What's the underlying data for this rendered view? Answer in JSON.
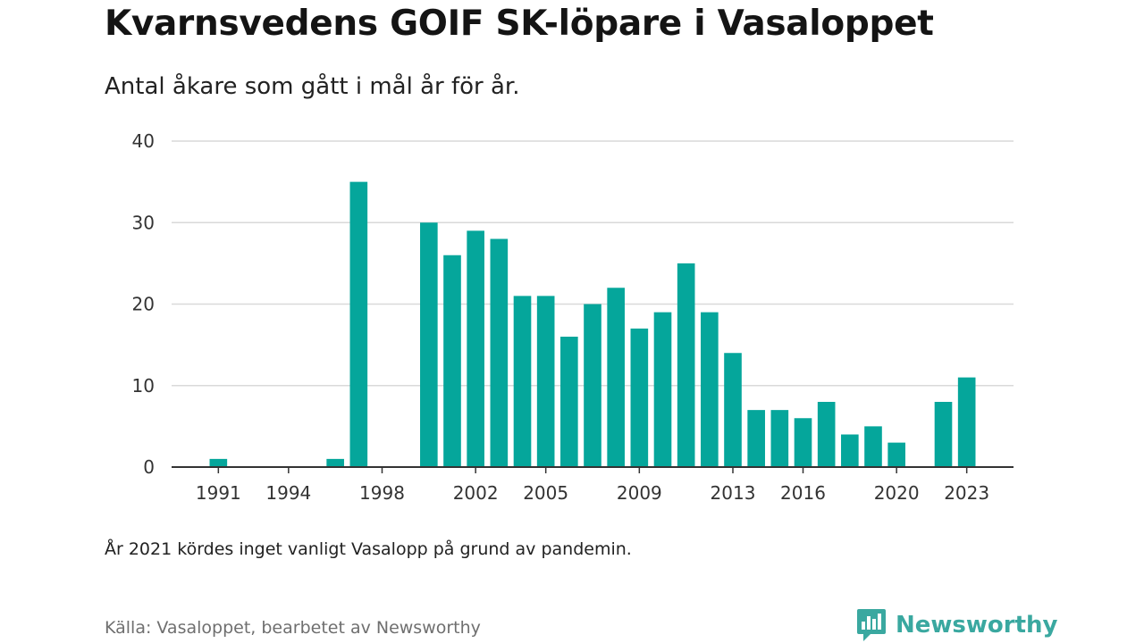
{
  "title": "Kvarnsvedens GOIF SK-löpare i Vasaloppet",
  "subtitle": "Antal åkare som gått i mål år för år.",
  "footnote": "År 2021 kördes inget vanligt Vasalopp på grund av pandemin.",
  "source": "Källa: Vasaloppet, bearbetet av Newsworthy",
  "brand": {
    "name": "Newsworthy",
    "icon": "newsworthy-logo-icon",
    "color": "#3aa8a0"
  },
  "colors": {
    "bar": "#05a69b",
    "grid": "#d9d9d9",
    "axis": "#333333"
  },
  "chart_data": {
    "type": "bar",
    "title": "Kvarnsvedens GOIF SK-löpare i Vasaloppet",
    "subtitle": "Antal åkare som gått i mål år för år.",
    "xlabel": "",
    "ylabel": "",
    "ylim": [
      0,
      40
    ],
    "yticks": [
      0,
      10,
      20,
      30,
      40
    ],
    "xticks": [
      1991,
      1994,
      1998,
      2002,
      2005,
      2009,
      2013,
      2016,
      2020,
      2023
    ],
    "x_range": [
      1989,
      2025
    ],
    "grid": true,
    "legend": "none",
    "categories": [
      1991,
      1996,
      1997,
      2000,
      2001,
      2002,
      2003,
      2004,
      2005,
      2006,
      2007,
      2008,
      2009,
      2010,
      2011,
      2012,
      2013,
      2014,
      2015,
      2016,
      2017,
      2018,
      2019,
      2020,
      2022,
      2023
    ],
    "values": [
      1,
      1,
      35,
      30,
      26,
      29,
      28,
      21,
      21,
      16,
      20,
      22,
      17,
      19,
      25,
      19,
      14,
      7,
      7,
      6,
      8,
      4,
      5,
      3,
      8,
      11
    ]
  }
}
